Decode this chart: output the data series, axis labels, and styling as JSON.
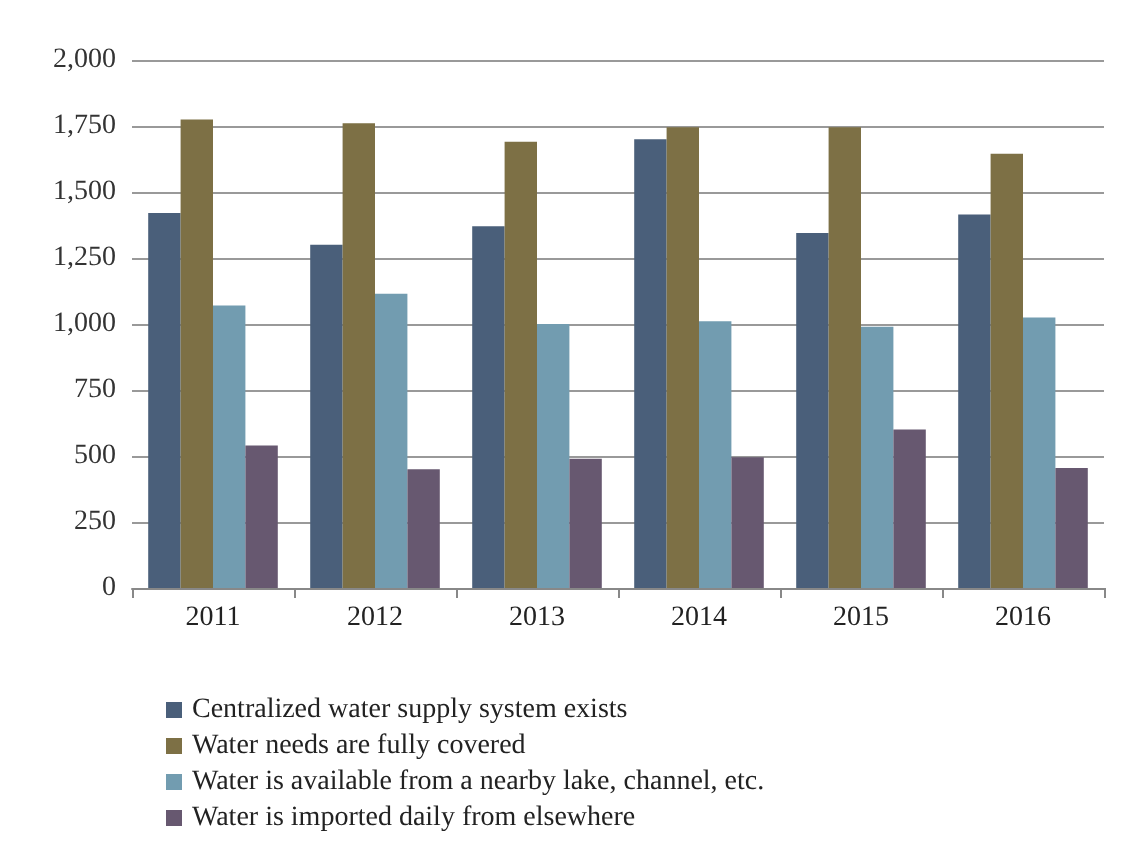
{
  "chart_data": {
    "type": "bar",
    "categories": [
      "2011",
      "2012",
      "2013",
      "2014",
      "2015",
      "2016"
    ],
    "series": [
      {
        "name": "Centralized water supply system exists",
        "color": "#4a5f7a",
        "values": [
          1420,
          1300,
          1370,
          1700,
          1345,
          1415
        ]
      },
      {
        "name": "Water needs are fully covered",
        "color": "#7d7045",
        "values": [
          1775,
          1760,
          1690,
          1745,
          1745,
          1645
        ]
      },
      {
        "name": "Water is available from a nearby lake, channel, etc.",
        "color": "#729cb0",
        "values": [
          1070,
          1115,
          1000,
          1010,
          990,
          1025
        ]
      },
      {
        "name": "Water is imported daily from elsewhere",
        "color": "#675870",
        "values": [
          540,
          450,
          490,
          495,
          600,
          455
        ]
      }
    ],
    "ylim": [
      0,
      2000
    ],
    "yticks": [
      0,
      250,
      500,
      750,
      {
        "value": 1000,
        "label": "1,000"
      },
      {
        "value": 1250,
        "label": "1,250"
      },
      {
        "value": 1500,
        "label": "1,500"
      },
      {
        "value": 1750,
        "label": "1,750"
      },
      {
        "value": 2000,
        "label": "2,000"
      }
    ],
    "grid": "y",
    "legend": "bottom left"
  }
}
